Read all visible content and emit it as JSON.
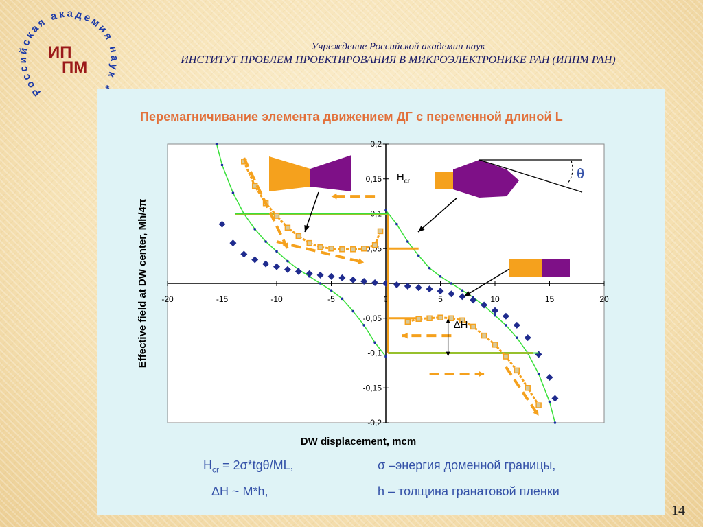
{
  "logo": {
    "ring_text": "Российская академия наук *",
    "line1": "ИП",
    "line2": "ПМ"
  },
  "header": {
    "line1": "Учреждение Российской академии наук",
    "line2": "ИНСТИТУТ  ПРОБЛЕМ  ПРОЕКТИРОВАНИЯ  В МИКРОЭЛЕКТРОНИКЕ РАН (ИППМ РАН)"
  },
  "page_number": "14",
  "colors": {
    "title": "#e2703a",
    "orange": "#f5a11d",
    "navy": "#1f2b8e",
    "green": "#39e03a",
    "purple": "#7e1087",
    "formula": "#3552a8"
  },
  "annotations": {
    "hcr": "H",
    "hcr_sub": "cr",
    "theta": "θ",
    "delta_h": "ΔH"
  },
  "formulas": {
    "hcr_lhs": "H",
    "hcr_sub": "cr",
    "hcr_rhs": " = 2σ*tgθ/ML,",
    "sigma_def": "σ –энергия доменной границы,",
    "delta_h": "ΔH ~ M*h,",
    "h_def": "h – толщина гранатовой пленки"
  },
  "chart_data": {
    "type": "scatter",
    "title": "Перемагничивание элемента движением ДГ с переменной длиной L",
    "xlabel": "DW displacement, mcm",
    "ylabel": "Effective field at DW center, Mh/4π",
    "xlim": [
      -20,
      20
    ],
    "ylim": [
      -0.2,
      0.2
    ],
    "x_ticks": [
      "-20",
      "-15",
      "-10",
      "-5",
      "0",
      "5",
      "10",
      "15",
      "20"
    ],
    "y_ticks_pos": [
      "0,2",
      "0,15",
      "0,1",
      "0,05"
    ],
    "y_ticks_neg": [
      "-0,05",
      "-0,1",
      "-0,15",
      "-0,2"
    ],
    "grid": false,
    "series": [
      {
        "style": "navy-diamonds",
        "points": [
          [
            -15,
            0.085
          ],
          [
            -14,
            0.058
          ],
          [
            -13,
            0.042
          ],
          [
            -12,
            0.034
          ],
          [
            -11,
            0.028
          ],
          [
            -10,
            0.024
          ],
          [
            -9,
            0.02
          ],
          [
            -8,
            0.017
          ],
          [
            -7,
            0.014
          ],
          [
            -6,
            0.012
          ],
          [
            -5,
            0.01
          ],
          [
            -4,
            0.008
          ],
          [
            -3,
            0.005
          ],
          [
            -2,
            0.003
          ],
          [
            -1,
            0.001
          ],
          [
            0,
            0.0
          ],
          [
            1,
            -0.002
          ],
          [
            2,
            -0.004
          ],
          [
            3,
            -0.006
          ],
          [
            4,
            -0.008
          ],
          [
            5,
            -0.011
          ],
          [
            6,
            -0.015
          ],
          [
            7,
            -0.019
          ],
          [
            8,
            -0.024
          ],
          [
            9,
            -0.031
          ],
          [
            10,
            -0.039
          ],
          [
            11,
            -0.047
          ],
          [
            12,
            -0.06
          ],
          [
            13,
            -0.078
          ],
          [
            14,
            -0.102
          ],
          [
            15,
            -0.135
          ],
          [
            15.5,
            -0.165
          ]
        ]
      },
      {
        "style": "green-line-blue-dots",
        "points": [
          [
            -15.5,
            0.2
          ],
          [
            -15,
            0.17
          ],
          [
            -14,
            0.13
          ],
          [
            -13,
            0.1
          ],
          [
            -12,
            0.078
          ],
          [
            -11,
            0.06
          ],
          [
            -10,
            0.046
          ],
          [
            -9,
            0.032
          ],
          [
            -8,
            0.02
          ],
          [
            -7,
            0.01
          ],
          [
            -6,
            0.0
          ],
          [
            -5,
            -0.01
          ],
          [
            -4,
            -0.022
          ],
          [
            -3,
            -0.04
          ],
          [
            -2,
            -0.06
          ],
          [
            -1,
            -0.085
          ],
          [
            0,
            -0.105
          ],
          [
            0,
            0.105
          ],
          [
            1,
            0.085
          ],
          [
            2,
            0.06
          ],
          [
            3,
            0.04
          ],
          [
            4,
            0.022
          ],
          [
            5,
            0.01
          ],
          [
            6,
            0.0
          ],
          [
            7,
            -0.01
          ],
          [
            8,
            -0.02
          ],
          [
            9,
            -0.032
          ],
          [
            10,
            -0.046
          ],
          [
            11,
            -0.06
          ],
          [
            12,
            -0.078
          ],
          [
            13,
            -0.1
          ],
          [
            14,
            -0.13
          ],
          [
            15,
            -0.17
          ],
          [
            15.5,
            -0.2
          ]
        ]
      },
      {
        "style": "orange-squares",
        "points": [
          [
            -13,
            0.175
          ],
          [
            -12,
            0.14
          ],
          [
            -11,
            0.115
          ],
          [
            -10,
            0.097
          ],
          [
            -9,
            0.08
          ],
          [
            -8,
            0.068
          ],
          [
            -7,
            0.058
          ],
          [
            -6,
            0.052
          ],
          [
            -5,
            0.05
          ],
          [
            -4,
            0.049
          ],
          [
            -3,
            0.049
          ],
          [
            -2,
            0.05
          ],
          [
            -1,
            0.055
          ],
          [
            -0.5,
            0.075
          ],
          [
            2,
            -0.055
          ],
          [
            3,
            -0.051
          ],
          [
            4,
            -0.05
          ],
          [
            5,
            -0.049
          ],
          [
            6,
            -0.05
          ],
          [
            7,
            -0.053
          ],
          [
            8,
            -0.062
          ],
          [
            9,
            -0.075
          ],
          [
            10,
            -0.088
          ],
          [
            11,
            -0.105
          ],
          [
            12,
            -0.125
          ],
          [
            13,
            -0.15
          ],
          [
            14,
            -0.175
          ]
        ]
      }
    ],
    "reference_levels": {
      "hcr_level": 0.1,
      "green_bar_level": 0.1,
      "delta_h_level": -0.05
    }
  }
}
